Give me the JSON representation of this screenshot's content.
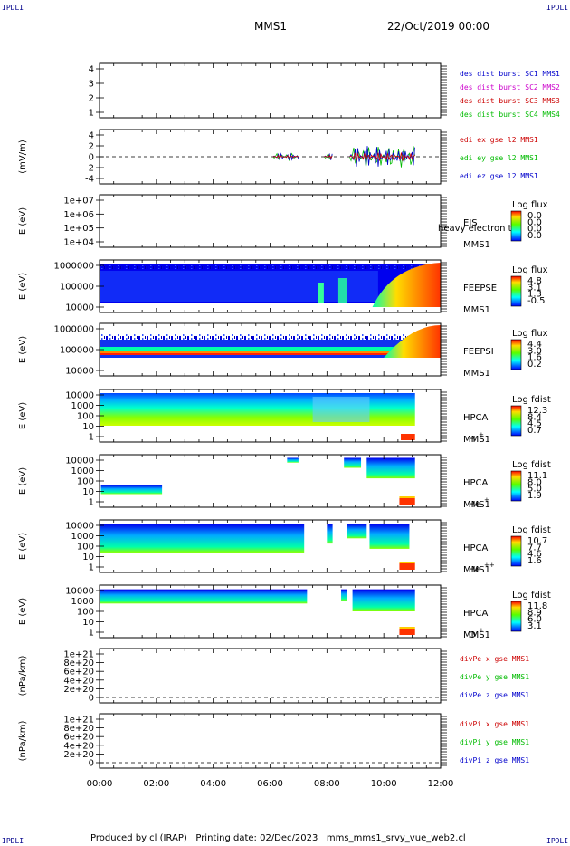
{
  "corner_label": "IPDLI",
  "header": {
    "mission": "MMS1",
    "date": "22/Oct/2019 00:00"
  },
  "footer": {
    "produced_by": "Produced by cl (IRAP)",
    "printing_date": "Printing date: 02/Dec/2023",
    "script": "mms_mms1_srvy_vue_web2.cl"
  },
  "x_axis": {
    "ticks": [
      "00:00",
      "02:00",
      "04:00",
      "06:00",
      "08:00",
      "10:00",
      "12:00"
    ],
    "range_hours": [
      0,
      12
    ]
  },
  "colors": {
    "blue": "#0000cc",
    "magenta": "#cc00cc",
    "red": "#cc0000",
    "green": "#00bb00"
  },
  "chart_data": [
    {
      "id": "panel1",
      "type": "line",
      "ylabel": "",
      "yticks": [
        "4",
        "3",
        "2",
        "1"
      ],
      "ylim": [
        0.5,
        4.5
      ],
      "legend": [
        {
          "text": "des dist burst SC1 MMS1",
          "color": "#0000cc"
        },
        {
          "text": "des dist burst SC2 MMS2",
          "color": "#cc00cc"
        },
        {
          "text": "des dist burst SC3 MMS3",
          "color": "#cc0000"
        },
        {
          "text": "des dist burst SC4 MMS4",
          "color": "#00bb00"
        }
      ]
    },
    {
      "id": "panel2",
      "type": "line",
      "ylabel": "(mV/m)",
      "yticks": [
        "4",
        "2",
        "0",
        "-2",
        "-4"
      ],
      "ylim": [
        -5.5,
        5.5
      ],
      "legend": [
        {
          "text": "edi ex gse l2 MMS1",
          "color": "#cc0000"
        },
        {
          "text": "edi ey gse l2 MMS1",
          "color": "#00bb00"
        },
        {
          "text": "edi ez gse l2 MMS1",
          "color": "#0000cc"
        }
      ],
      "data_intervals_hours": [
        [
          6.1,
          7.0
        ],
        [
          7.9,
          8.2
        ],
        [
          8.8,
          11.1
        ]
      ]
    },
    {
      "id": "panel3",
      "type": "heatmap",
      "ylabel": "E (eV)",
      "scale": "log",
      "yticks": [
        "1e+07",
        "1e+06",
        "1e+05",
        "1e+04"
      ],
      "instrument": [
        "EIS",
        "MMS1"
      ],
      "overlay_text": "heavy electron to",
      "colorbar": {
        "title": "Log flux",
        "ticks": [
          "0.0",
          "0.0",
          "0.0",
          "0.0"
        ]
      }
    },
    {
      "id": "panel4",
      "type": "heatmap",
      "ylabel": "E (eV)",
      "scale": "log",
      "yticks": [
        "1000000",
        "100000",
        "10000"
      ],
      "instrument": [
        "FEEPSE",
        "MMS1"
      ],
      "colorbar": {
        "title": "Log flux",
        "ticks": [
          "4.8",
          "3.1",
          "1.3",
          "-0.5"
        ]
      }
    },
    {
      "id": "panel5",
      "type": "heatmap",
      "ylabel": "E (eV)",
      "scale": "log",
      "yticks": [
        "1000000",
        "100000",
        "10000"
      ],
      "instrument": [
        "FEEPSI",
        "MMS1"
      ],
      "colorbar": {
        "title": "Log flux",
        "ticks": [
          "4.4",
          "3.0",
          "1.6",
          "0.2"
        ]
      }
    },
    {
      "id": "panel6",
      "type": "heatmap",
      "ylabel": "E (eV)",
      "scale": "log",
      "yticks": [
        "10000",
        "1000",
        "100",
        "10",
        "1"
      ],
      "instrument": [
        "HPCA",
        "MMS1"
      ],
      "species": "H",
      "species_sup": "+",
      "colorbar": {
        "title": "Log fdist",
        "ticks": [
          "12.3",
          "8.4",
          "4.5",
          "0.7"
        ]
      }
    },
    {
      "id": "panel7",
      "type": "heatmap",
      "ylabel": "E (eV)",
      "scale": "log",
      "yticks": [
        "10000",
        "1000",
        "100",
        "10",
        "1"
      ],
      "instrument": [
        "HPCA",
        "MMS1"
      ],
      "species": "He",
      "species_sup": "+",
      "colorbar": {
        "title": "Log fdist",
        "ticks": [
          "11.1",
          "8.0",
          "5.0",
          "1.9"
        ]
      }
    },
    {
      "id": "panel8",
      "type": "heatmap",
      "ylabel": "E (eV)",
      "scale": "log",
      "yticks": [
        "10000",
        "1000",
        "100",
        "10",
        "1"
      ],
      "instrument": [
        "HPCA",
        "MMS1"
      ],
      "species": "He",
      "species_sup": "++",
      "colorbar": {
        "title": "Log fdist",
        "ticks": [
          "10.7",
          "7.7",
          "4.6",
          "1.6"
        ]
      }
    },
    {
      "id": "panel9",
      "type": "heatmap",
      "ylabel": "E (eV)",
      "scale": "log",
      "yticks": [
        "10000",
        "1000",
        "100",
        "10",
        "1"
      ],
      "instrument": [
        "HPCA",
        "MMS1"
      ],
      "species": "O",
      "species_sup": "+",
      "colorbar": {
        "title": "Log fdist",
        "ticks": [
          "11.8",
          "8.9",
          "6.0",
          "3.1"
        ]
      }
    },
    {
      "id": "panel10",
      "type": "line",
      "ylabel": "(nPa/km)",
      "yticks": [
        "1e+21",
        "8e+20",
        "6e+20",
        "4e+20",
        "2e+20",
        "0"
      ],
      "ylim": [
        -5e+19,
        1.05e+21
      ],
      "legend": [
        {
          "text": "divPe x gse MMS1",
          "color": "#cc0000"
        },
        {
          "text": "divPe y gse MMS1",
          "color": "#00bb00"
        },
        {
          "text": "divPe z gse MMS1",
          "color": "#0000cc"
        }
      ]
    },
    {
      "id": "panel11",
      "type": "line",
      "ylabel": "(nPa/km)",
      "yticks": [
        "1e+21",
        "8e+20",
        "6e+20",
        "4e+20",
        "2e+20",
        "0"
      ],
      "ylim": [
        -5e+19,
        1.05e+21
      ],
      "legend": [
        {
          "text": "divPi x gse MMS1",
          "color": "#cc0000"
        },
        {
          "text": "divPi y gse MMS1",
          "color": "#00bb00"
        },
        {
          "text": "divPi z gse MMS1",
          "color": "#0000cc"
        }
      ]
    }
  ]
}
